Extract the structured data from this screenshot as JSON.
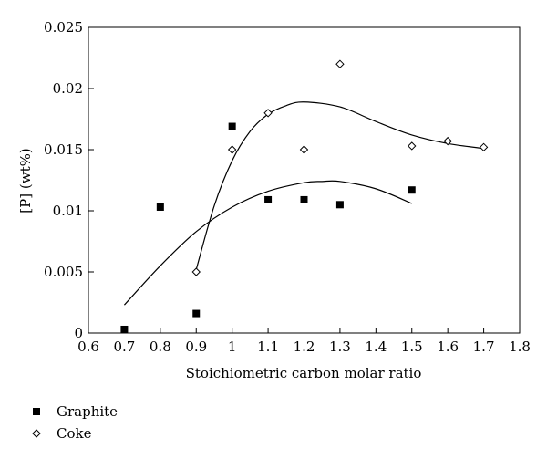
{
  "chart_data": {
    "type": "scatter",
    "title": "",
    "xlabel": "Stoichiometric carbon molar ratio",
    "ylabel": "[P] (wt%)",
    "xlim": [
      0.6,
      1.8
    ],
    "ylim": [
      0,
      0.025
    ],
    "x_ticks": [
      0.6,
      0.7,
      0.8,
      0.9,
      1,
      1.1,
      1.2,
      1.3,
      1.4,
      1.5,
      1.6,
      1.7,
      1.8
    ],
    "x_tick_labels": [
      "0.6",
      "0.7",
      "0.8",
      "0.9",
      "1",
      "1.1",
      "1.2",
      "1.3",
      "1.4",
      "1.5",
      "1.6",
      "1.7",
      "1.8"
    ],
    "y_ticks": [
      0,
      0.005,
      0.01,
      0.015,
      0.02,
      0.025
    ],
    "y_tick_labels": [
      "0",
      "0.005",
      "0.01",
      "0.015",
      "0.02",
      "0.025"
    ],
    "grid": false,
    "legend_position": "bottom-left, below the plot",
    "series": [
      {
        "name": "Graphite",
        "marker": "filled-square",
        "color": "#000000",
        "points": [
          {
            "x": 0.7,
            "y": 0.0003
          },
          {
            "x": 0.8,
            "y": 0.0103
          },
          {
            "x": 0.9,
            "y": 0.0016
          },
          {
            "x": 1.0,
            "y": 0.0169
          },
          {
            "x": 1.1,
            "y": 0.0109
          },
          {
            "x": 1.2,
            "y": 0.0109
          },
          {
            "x": 1.3,
            "y": 0.0105
          },
          {
            "x": 1.5,
            "y": 0.0117
          }
        ],
        "trend_curve": [
          {
            "x": 0.7,
            "y": 0.0023
          },
          {
            "x": 0.8,
            "y": 0.0055
          },
          {
            "x": 0.9,
            "y": 0.0083
          },
          {
            "x": 1.0,
            "y": 0.0103
          },
          {
            "x": 1.1,
            "y": 0.0116
          },
          {
            "x": 1.2,
            "y": 0.0123
          },
          {
            "x": 1.25,
            "y": 0.0124
          },
          {
            "x": 1.3,
            "y": 0.0124
          },
          {
            "x": 1.4,
            "y": 0.0118
          },
          {
            "x": 1.5,
            "y": 0.0106
          }
        ]
      },
      {
        "name": "Coke",
        "marker": "open-diamond",
        "color": "#000000",
        "points": [
          {
            "x": 0.9,
            "y": 0.005
          },
          {
            "x": 1.0,
            "y": 0.015
          },
          {
            "x": 1.1,
            "y": 0.018
          },
          {
            "x": 1.2,
            "y": 0.015
          },
          {
            "x": 1.3,
            "y": 0.022
          },
          {
            "x": 1.5,
            "y": 0.0153
          },
          {
            "x": 1.6,
            "y": 0.0157
          },
          {
            "x": 1.7,
            "y": 0.0152
          }
        ],
        "trend_curve": [
          {
            "x": 0.9,
            "y": 0.0052
          },
          {
            "x": 0.95,
            "y": 0.0104
          },
          {
            "x": 1.0,
            "y": 0.0141
          },
          {
            "x": 1.05,
            "y": 0.0165
          },
          {
            "x": 1.1,
            "y": 0.0179
          },
          {
            "x": 1.15,
            "y": 0.0186
          },
          {
            "x": 1.2,
            "y": 0.0189
          },
          {
            "x": 1.3,
            "y": 0.0185
          },
          {
            "x": 1.4,
            "y": 0.0173
          },
          {
            "x": 1.5,
            "y": 0.0162
          },
          {
            "x": 1.6,
            "y": 0.0155
          },
          {
            "x": 1.7,
            "y": 0.0151
          }
        ]
      }
    ]
  }
}
